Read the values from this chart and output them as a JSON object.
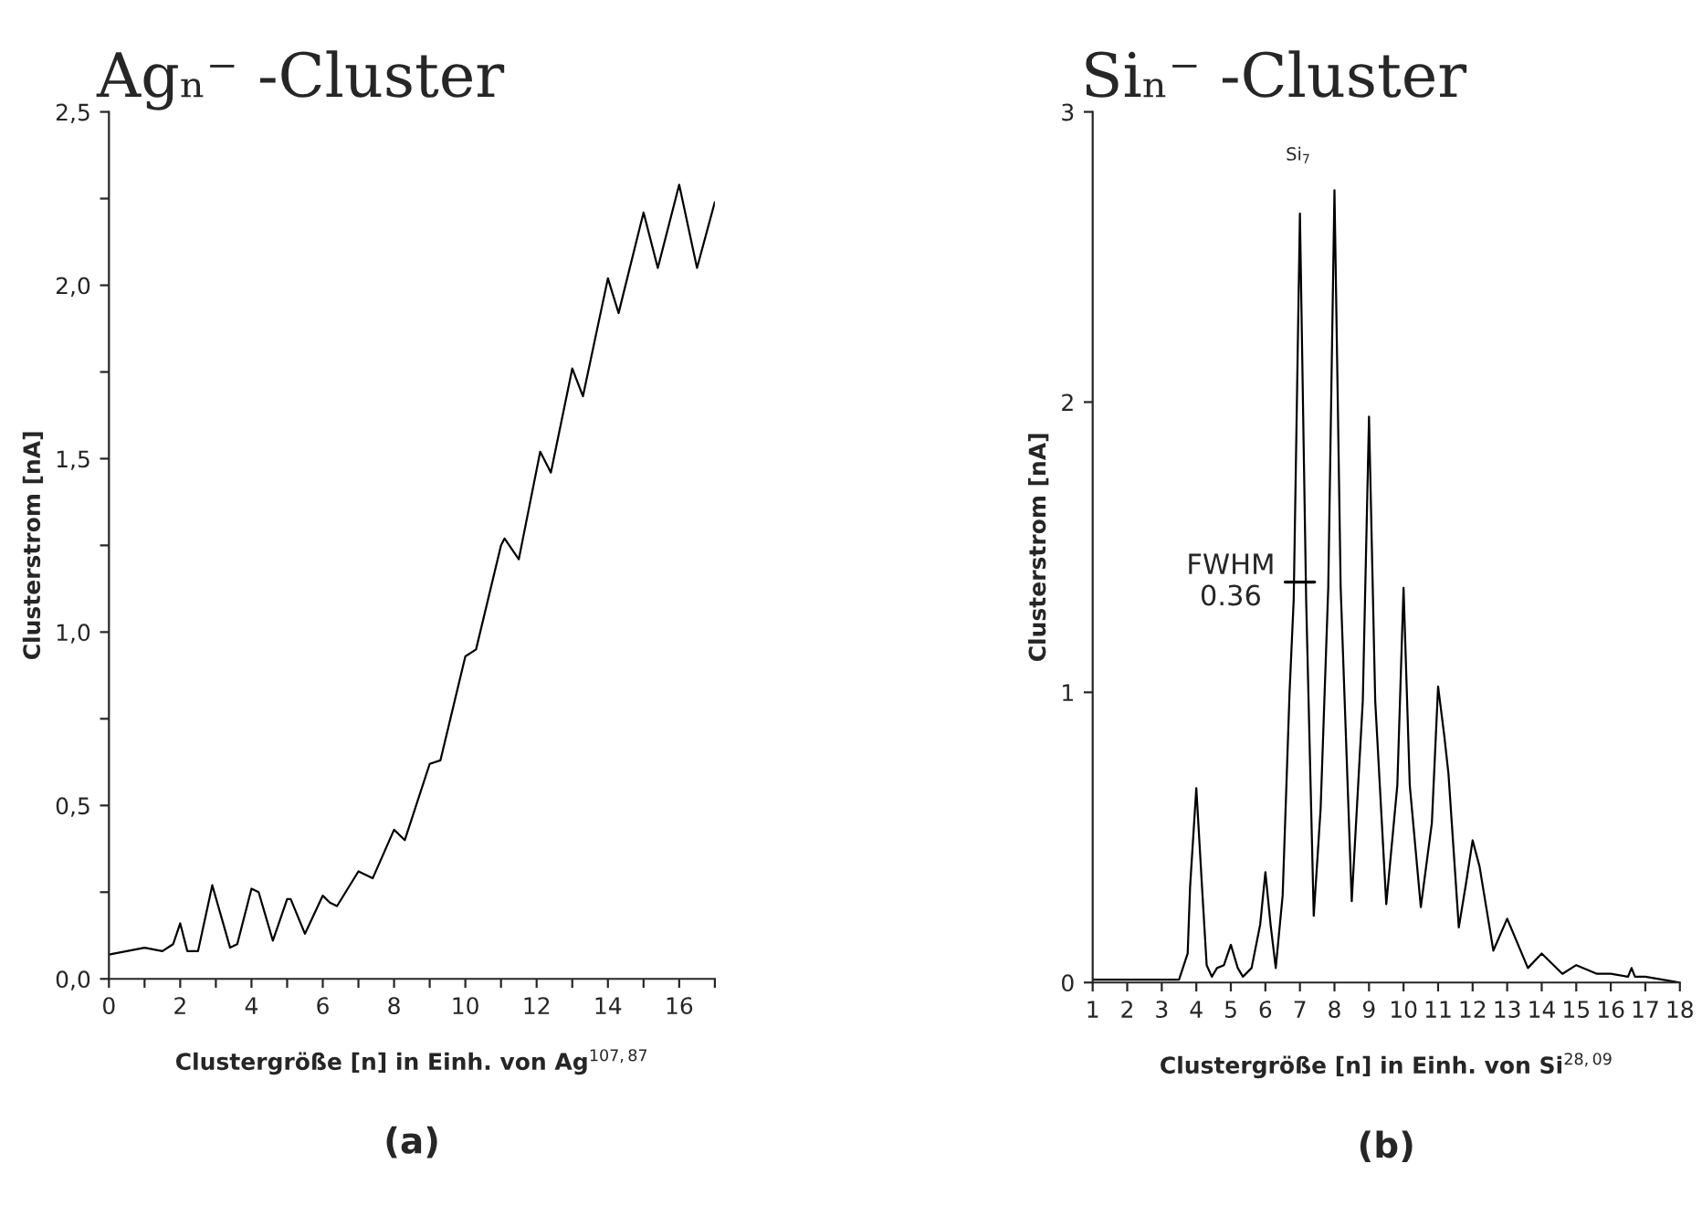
{
  "chart_data": [
    {
      "type": "line",
      "title": "Agₙ⁻ -Cluster",
      "xlabel": "Clustergröße [n] in Einh. von Ag$^{107,87}$",
      "ylabel": "Clusterstrom [nA]",
      "x": [
        0,
        0.5,
        1,
        1.5,
        1.8,
        2,
        2.2,
        2.5,
        2.9,
        3.4,
        3.6,
        4,
        4.2,
        4.6,
        5,
        5.1,
        5.5,
        6,
        6.2,
        6.4,
        7,
        7.4,
        8,
        8.3,
        9,
        9.3,
        10,
        10.3,
        11,
        11.1,
        11.5,
        12.1,
        12.4,
        13,
        13.3,
        14,
        14.3,
        15,
        15.4,
        16,
        16.5,
        17
      ],
      "series": [
        {
          "color": "#000000",
          "values": [
            0.07,
            0.08,
            0.09,
            0.08,
            0.1,
            0.16,
            0.08,
            0.08,
            0.27,
            0.09,
            0.1,
            0.26,
            0.25,
            0.11,
            0.23,
            0.23,
            0.13,
            0.24,
            0.22,
            0.21,
            0.31,
            0.29,
            0.43,
            0.4,
            0.62,
            0.63,
            0.93,
            0.95,
            1.25,
            1.27,
            1.21,
            1.52,
            1.46,
            1.76,
            1.68,
            2.02,
            1.92,
            2.21,
            2.05,
            2.29,
            2.05,
            2.24
          ]
        }
      ],
      "xlim": [
        0,
        17
      ],
      "xticks": [
        0,
        {
          "value": 1,
          "label": null
        },
        2,
        {
          "value": 3,
          "label": null
        },
        4,
        {
          "value": 5,
          "label": null
        },
        6,
        {
          "value": 7,
          "label": null
        },
        8,
        {
          "value": 9,
          "label": null
        },
        10,
        {
          "value": 11,
          "label": null
        },
        12,
        {
          "value": 13,
          "label": null
        },
        14,
        {
          "value": 15,
          "label": null
        },
        16,
        {
          "value": 17,
          "label": null
        }
      ],
      "ylim": [
        0,
        2.5
      ],
      "yticks": [
        {
          "value": 0,
          "label": "0,0"
        },
        {
          "value": 0.25,
          "label": null
        },
        {
          "value": 0.5,
          "label": "0,5"
        },
        {
          "value": 0.75,
          "label": null
        },
        {
          "value": 1,
          "label": "1,0"
        },
        {
          "value": 1.25,
          "label": null
        },
        {
          "value": 1.5,
          "label": "1,5"
        },
        {
          "value": 1.75,
          "label": null
        },
        {
          "value": 2,
          "label": "2,0"
        },
        {
          "value": 2.25,
          "label": null
        },
        {
          "value": 2.5,
          "label": "2,5"
        }
      ],
      "grid": false,
      "legend": false,
      "annotations": [
        "(a)"
      ]
    },
    {
      "type": "line",
      "title": "Siₙ⁻ -Cluster",
      "xlabel": "Clustergröße [n] in Einh. von Si$^{28,09}$",
      "ylabel": "Clusterstrom [nA]",
      "x": [
        1,
        2,
        3,
        3.5,
        3.75,
        3.82,
        4,
        4.18,
        4.3,
        4.45,
        4.6,
        4.8,
        5,
        5.2,
        5.35,
        5.6,
        5.85,
        6,
        6.15,
        6.3,
        6.5,
        6.7,
        6.82,
        7,
        7.18,
        7.4,
        7.6,
        7.82,
        8,
        8.18,
        8.5,
        8.82,
        9,
        9.18,
        9.5,
        9.82,
        10,
        10.18,
        10.5,
        10.82,
        11,
        11.18,
        11.3,
        11.6,
        11.82,
        12,
        12.2,
        12.6,
        13,
        13.6,
        14,
        14.6,
        15,
        15.6,
        16,
        16.5,
        16.6,
        16.7,
        17,
        17.5,
        18
      ],
      "series": [
        {
          "color": "#000000",
          "values": [
            0.01,
            0.01,
            0.01,
            0.01,
            0.1,
            0.33,
            0.67,
            0.3,
            0.06,
            0.02,
            0.05,
            0.06,
            0.13,
            0.05,
            0.02,
            0.05,
            0.2,
            0.38,
            0.2,
            0.05,
            0.3,
            1.0,
            1.32,
            2.65,
            1.32,
            0.23,
            0.6,
            1.36,
            2.73,
            1.36,
            0.28,
            0.97,
            1.95,
            0.97,
            0.27,
            0.68,
            1.36,
            0.68,
            0.26,
            0.55,
            1.02,
            0.85,
            0.72,
            0.19,
            0.35,
            0.49,
            0.4,
            0.11,
            0.22,
            0.05,
            0.1,
            0.03,
            0.06,
            0.03,
            0.03,
            0.02,
            0.05,
            0.02,
            0.02,
            0.01,
            0.0
          ]
        }
      ],
      "xlim": [
        1,
        18
      ],
      "xticks": [
        1,
        2,
        3,
        4,
        5,
        6,
        7,
        8,
        9,
        10,
        11,
        12,
        13,
        14,
        15,
        16,
        17,
        18
      ],
      "ylim": [
        0,
        3
      ],
      "yticks": [
        0,
        1,
        2,
        3
      ],
      "grid": false,
      "legend": false,
      "annotations": [
        "Si$_{7}$",
        {
          "text": "FWHM\n0.36",
          "x": 7,
          "y": 1.38
        },
        "(b)"
      ]
    }
  ]
}
